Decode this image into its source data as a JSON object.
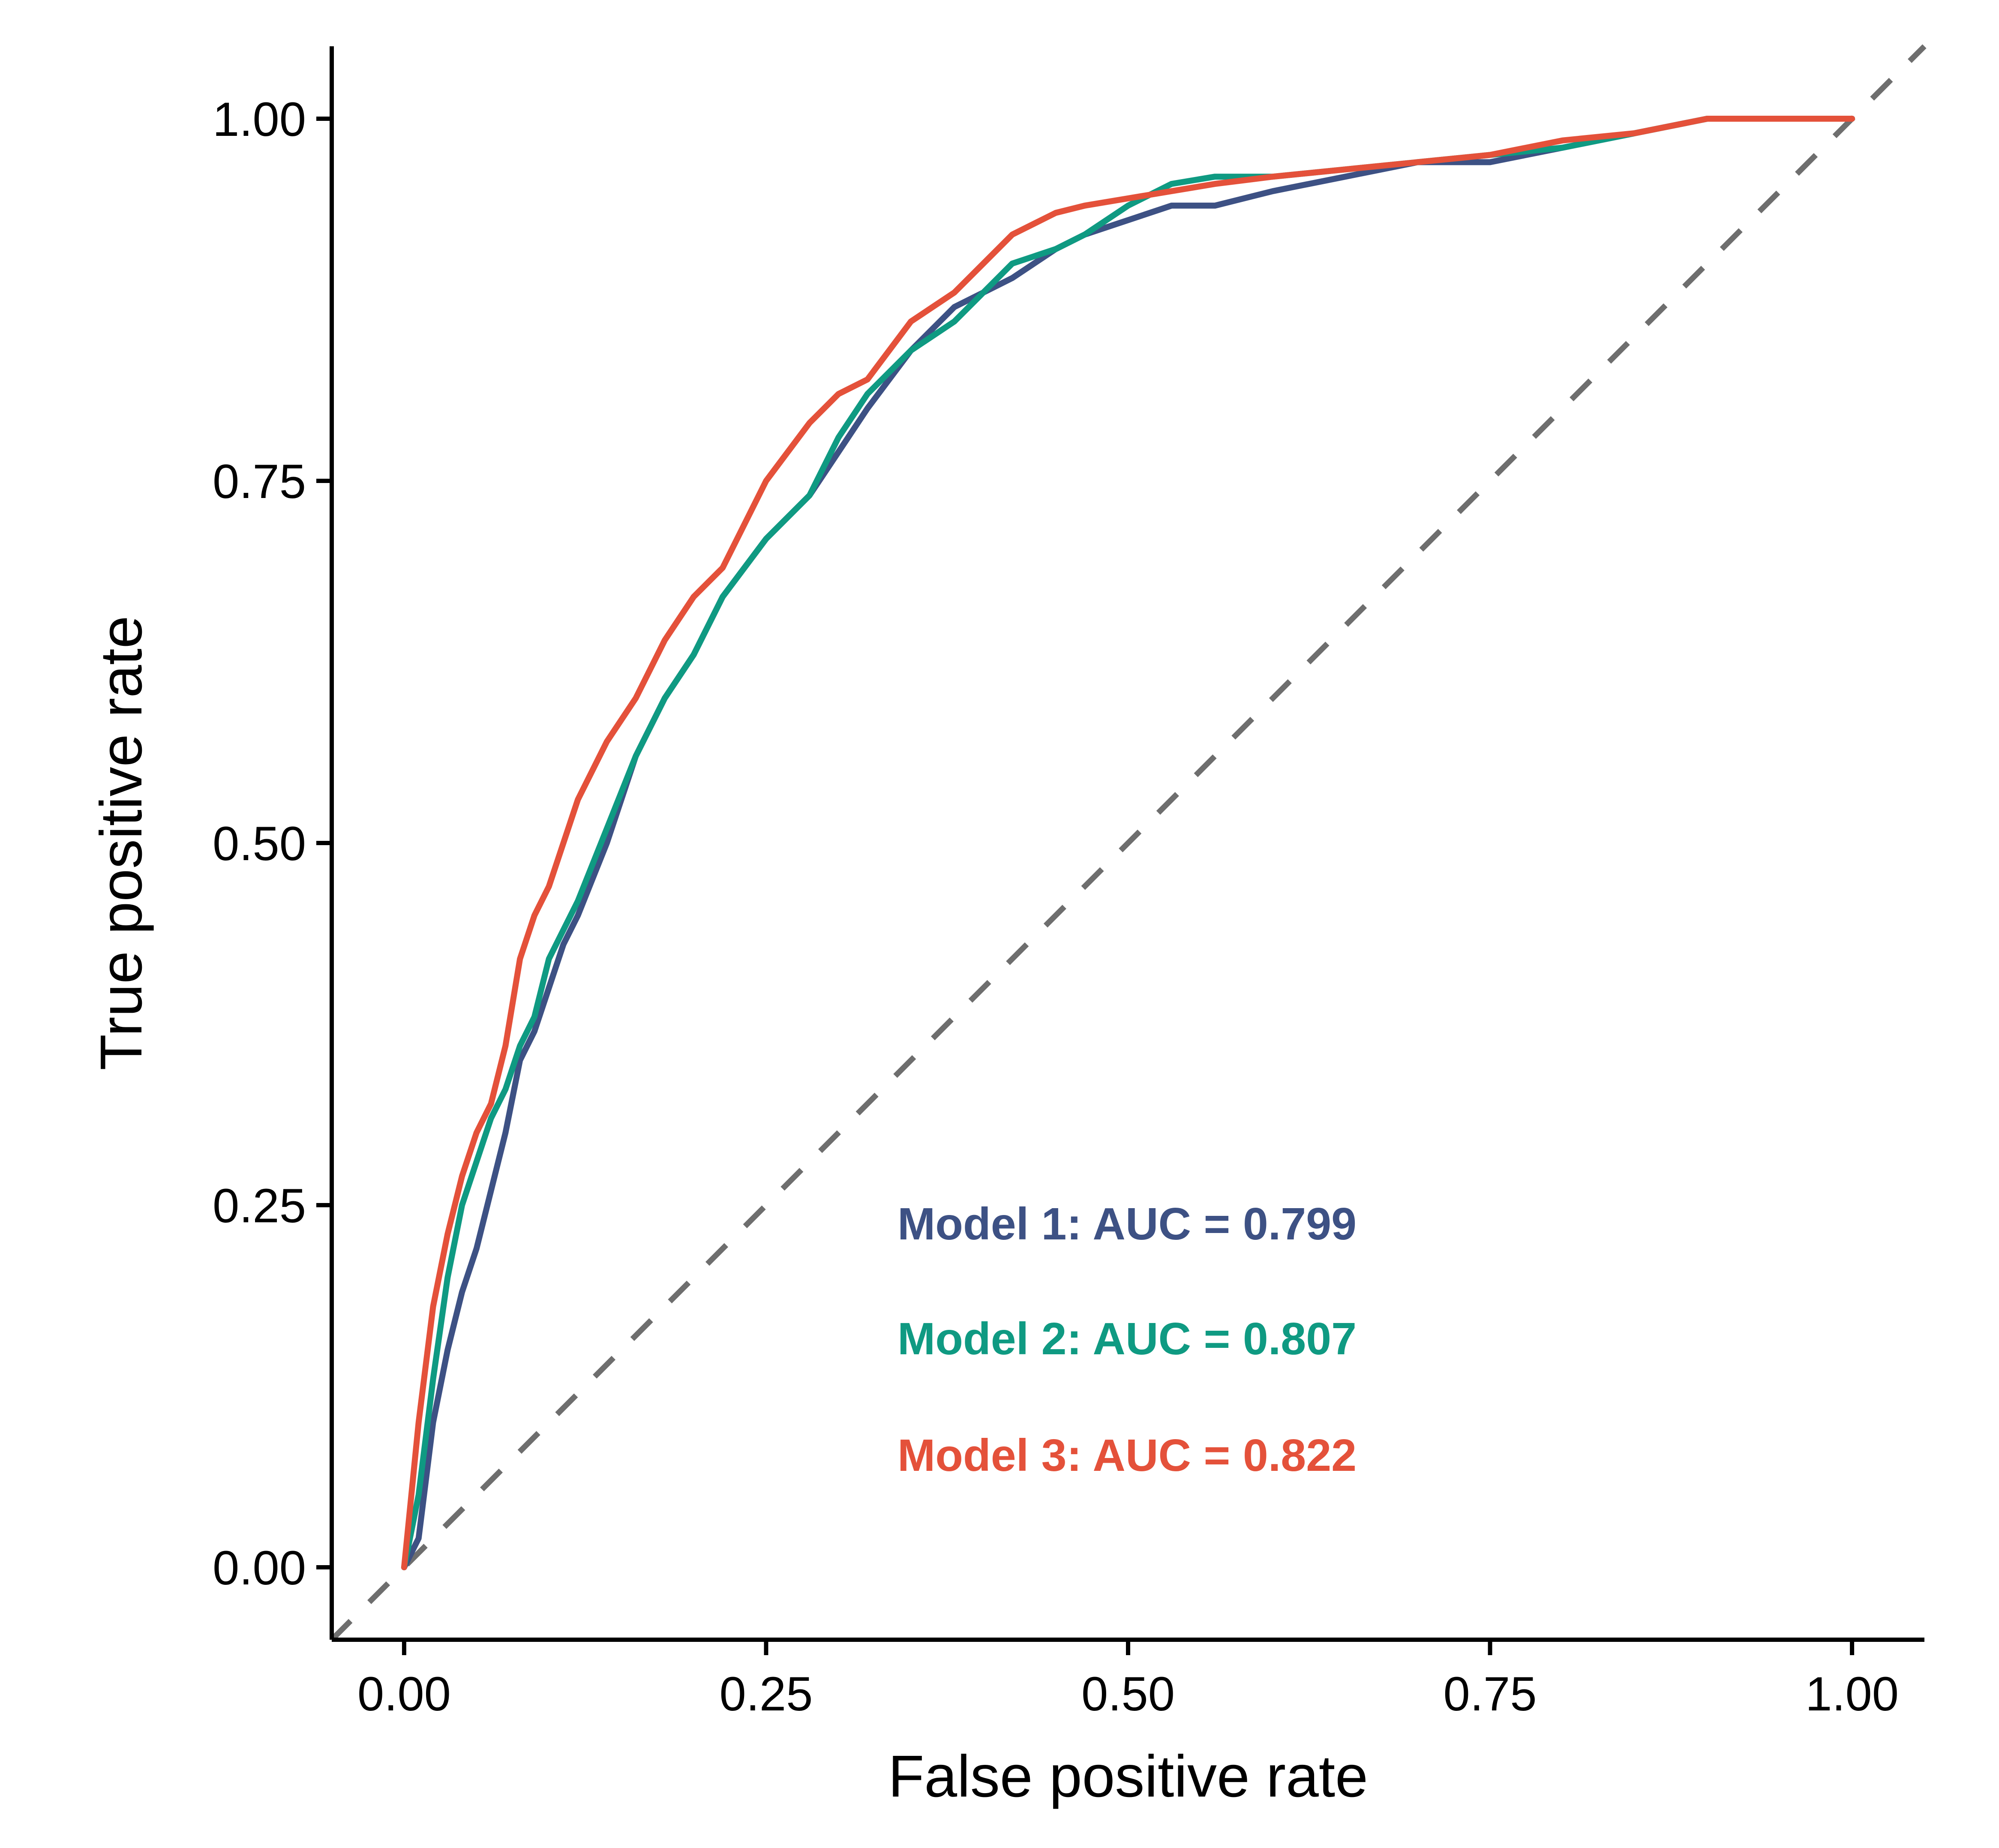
{
  "chart_data": {
    "type": "line",
    "title": "",
    "xlabel": "False positive rate",
    "ylabel": "True positive rate",
    "xlim": [
      -0.05,
      1.05
    ],
    "ylim": [
      -0.05,
      1.05
    ],
    "xticks": [
      {
        "value": 0.0,
        "label": "0.00"
      },
      {
        "value": 0.25,
        "label": "0.25"
      },
      {
        "value": 0.5,
        "label": "0.50"
      },
      {
        "value": 0.75,
        "label": "0.75"
      },
      {
        "value": 1.0,
        "label": "1.00"
      }
    ],
    "yticks": [
      {
        "value": 0.0,
        "label": "0.00"
      },
      {
        "value": 0.25,
        "label": "0.25"
      },
      {
        "value": 0.5,
        "label": "0.50"
      },
      {
        "value": 0.75,
        "label": "0.75"
      },
      {
        "value": 1.0,
        "label": "1.00"
      }
    ],
    "grid": false,
    "reference_line": {
      "x": [
        -0.05,
        1.05
      ],
      "y": [
        -0.05,
        1.05
      ],
      "style": "dashed",
      "color": "#6e6e6e"
    },
    "series": [
      {
        "name": "Model 1",
        "color": "#3d5184",
        "auc": 0.799,
        "x": [
          0.0,
          0.01,
          0.02,
          0.03,
          0.04,
          0.05,
          0.06,
          0.07,
          0.08,
          0.09,
          0.1,
          0.11,
          0.12,
          0.14,
          0.16,
          0.18,
          0.2,
          0.22,
          0.25,
          0.28,
          0.3,
          0.32,
          0.35,
          0.38,
          0.4,
          0.42,
          0.45,
          0.47,
          0.5,
          0.53,
          0.56,
          0.6,
          0.65,
          0.7,
          0.75,
          0.8,
          0.85,
          0.9,
          0.95,
          1.0
        ],
        "y": [
          0.0,
          0.02,
          0.1,
          0.15,
          0.19,
          0.22,
          0.26,
          0.3,
          0.35,
          0.37,
          0.4,
          0.43,
          0.45,
          0.5,
          0.56,
          0.6,
          0.63,
          0.67,
          0.71,
          0.74,
          0.77,
          0.8,
          0.84,
          0.87,
          0.88,
          0.89,
          0.91,
          0.92,
          0.93,
          0.94,
          0.94,
          0.95,
          0.96,
          0.97,
          0.97,
          0.98,
          0.99,
          1.0,
          1.0,
          1.0
        ]
      },
      {
        "name": "Model 2",
        "color": "#0f9a82",
        "auc": 0.807,
        "x": [
          0.0,
          0.01,
          0.02,
          0.03,
          0.04,
          0.05,
          0.06,
          0.07,
          0.08,
          0.09,
          0.1,
          0.11,
          0.12,
          0.14,
          0.16,
          0.18,
          0.2,
          0.22,
          0.25,
          0.28,
          0.3,
          0.32,
          0.35,
          0.38,
          0.4,
          0.42,
          0.45,
          0.47,
          0.5,
          0.53,
          0.56,
          0.6,
          0.65,
          0.7,
          0.75,
          0.8,
          0.85,
          0.9,
          0.95,
          1.0
        ],
        "y": [
          0.0,
          0.05,
          0.13,
          0.2,
          0.25,
          0.28,
          0.31,
          0.33,
          0.36,
          0.38,
          0.42,
          0.44,
          0.46,
          0.51,
          0.56,
          0.6,
          0.63,
          0.67,
          0.71,
          0.74,
          0.78,
          0.81,
          0.84,
          0.86,
          0.88,
          0.9,
          0.91,
          0.92,
          0.94,
          0.955,
          0.96,
          0.96,
          0.965,
          0.97,
          0.975,
          0.98,
          0.99,
          1.0,
          1.0,
          1.0
        ]
      },
      {
        "name": "Model 3",
        "color": "#e4513a",
        "auc": 0.822,
        "x": [
          0.0,
          0.01,
          0.02,
          0.03,
          0.04,
          0.05,
          0.06,
          0.07,
          0.08,
          0.09,
          0.1,
          0.11,
          0.12,
          0.14,
          0.16,
          0.18,
          0.2,
          0.22,
          0.25,
          0.28,
          0.3,
          0.32,
          0.35,
          0.38,
          0.4,
          0.42,
          0.45,
          0.47,
          0.5,
          0.53,
          0.56,
          0.6,
          0.65,
          0.7,
          0.75,
          0.8,
          0.85,
          0.9,
          0.95,
          1.0
        ],
        "y": [
          0.0,
          0.1,
          0.18,
          0.23,
          0.27,
          0.3,
          0.32,
          0.36,
          0.42,
          0.45,
          0.47,
          0.5,
          0.53,
          0.57,
          0.6,
          0.64,
          0.67,
          0.69,
          0.75,
          0.79,
          0.81,
          0.82,
          0.86,
          0.88,
          0.9,
          0.92,
          0.935,
          0.94,
          0.945,
          0.95,
          0.955,
          0.96,
          0.965,
          0.97,
          0.975,
          0.985,
          0.99,
          1.0,
          1.0,
          1.0
        ]
      }
    ],
    "annotations": [
      {
        "text": "Model 1: AUC = 0.799",
        "color": "#3d5184"
      },
      {
        "text": "Model 2: AUC = 0.807",
        "color": "#0f9a82"
      },
      {
        "text": "Model 3: AUC = 0.822",
        "color": "#e4513a"
      }
    ]
  }
}
